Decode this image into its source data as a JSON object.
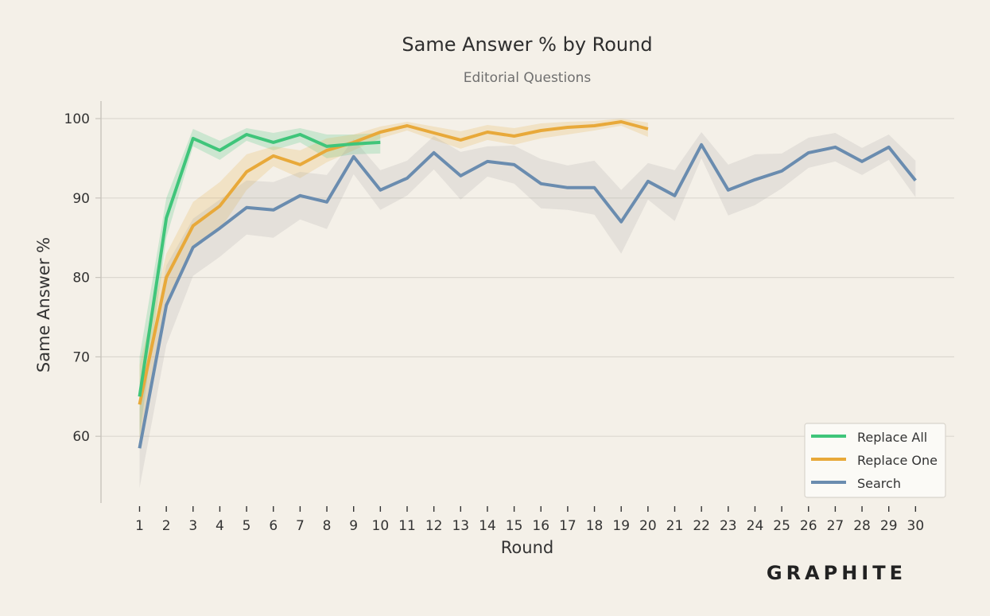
{
  "colors": {
    "background": "#f4f0e8",
    "grid": "#dcd8d0",
    "axis": "#c8c4bc",
    "text": "#333333",
    "legend_bg": "#fbfaf6"
  },
  "brand": {
    "name": "GRAPHITE"
  },
  "chart_data": {
    "type": "line",
    "title": "Same Answer % by Round",
    "subtitle": "Editorial Questions",
    "xlabel": "Round",
    "ylabel": "Same Answer %",
    "x": [
      1,
      2,
      3,
      4,
      5,
      6,
      7,
      8,
      9,
      10,
      11,
      12,
      13,
      14,
      15,
      16,
      17,
      18,
      19,
      20,
      21,
      22,
      23,
      24,
      25,
      26,
      27,
      28,
      29,
      30
    ],
    "xlim": [
      1,
      30
    ],
    "ylim": [
      52,
      102
    ],
    "yticks": [
      60,
      70,
      80,
      90,
      100
    ],
    "grid": true,
    "legend_position": "bottom-right",
    "series": [
      {
        "name": "Replace All",
        "color": "#3fc57a",
        "x": [
          1,
          2,
          3,
          4,
          5,
          6,
          7,
          8,
          9,
          10
        ],
        "values": [
          65,
          87.5,
          97.5,
          96,
          98,
          97,
          98,
          96.5,
          96.8,
          97
        ],
        "lower": [
          60,
          85,
          96.5,
          94.8,
          97.2,
          96,
          97,
          95,
          95.5,
          95.6
        ],
        "upper": [
          70,
          90,
          98.7,
          97.2,
          98.8,
          98.2,
          98.8,
          98,
          98,
          98.2
        ]
      },
      {
        "name": "Replace One",
        "color": "#e8a93a",
        "x": [
          1,
          2,
          3,
          4,
          5,
          6,
          7,
          8,
          9,
          10,
          11,
          12,
          13,
          14,
          15,
          16,
          17,
          18,
          19,
          20
        ],
        "values": [
          64,
          80,
          86.5,
          89,
          93.3,
          95.3,
          94.2,
          96,
          97,
          98.3,
          99.1,
          98.2,
          97.3,
          98.3,
          97.8,
          98.5,
          98.9,
          99.1,
          99.6,
          98.7
        ],
        "lower": [
          59,
          77,
          84,
          86,
          91,
          94,
          92.5,
          94.5,
          96,
          97.5,
          98.5,
          97.3,
          96.2,
          97.3,
          96.7,
          97.5,
          98,
          98.5,
          99.1,
          97.7
        ],
        "upper": [
          69,
          83,
          89.5,
          92,
          95.5,
          96.5,
          96,
          97.5,
          98,
          99,
          99.6,
          99,
          98.4,
          99.2,
          98.8,
          99.4,
          99.6,
          99.7,
          100,
          99.5
        ]
      },
      {
        "name": "Search",
        "color": "#6a8caf",
        "x": [
          1,
          2,
          3,
          4,
          5,
          6,
          7,
          8,
          9,
          10,
          11,
          12,
          13,
          14,
          15,
          16,
          17,
          18,
          19,
          20,
          21,
          22,
          23,
          24,
          25,
          26,
          27,
          28,
          29,
          30
        ],
        "values": [
          58.5,
          76.5,
          83.8,
          86.2,
          88.8,
          88.5,
          90.3,
          89.5,
          95.2,
          91,
          92.5,
          95.7,
          92.8,
          94.6,
          94.2,
          91.8,
          91.3,
          91.3,
          87,
          92.1,
          90.3,
          96.7,
          91,
          92.3,
          93.4,
          95.7,
          96.4,
          94.6,
          96.4,
          92.2
        ],
        "lower": [
          53.5,
          71.5,
          80.2,
          82.6,
          85.4,
          85,
          87.3,
          86.1,
          93,
          88.5,
          90.3,
          93.6,
          89.8,
          92.7,
          91.8,
          88.7,
          88.5,
          87.9,
          83,
          89.8,
          87.1,
          95,
          87.8,
          89.1,
          91.2,
          93.8,
          94.6,
          92.9,
          94.8,
          90.1
        ],
        "upper": [
          63.5,
          81.5,
          87.4,
          89.8,
          92.2,
          92,
          93.3,
          92.9,
          97.4,
          93.5,
          94.7,
          97.8,
          95.8,
          96.5,
          96.6,
          94.9,
          94.1,
          94.7,
          91,
          94.4,
          93.5,
          98.3,
          94.2,
          95.5,
          95.6,
          97.6,
          98.2,
          96.3,
          98,
          94.7
        ]
      }
    ]
  }
}
